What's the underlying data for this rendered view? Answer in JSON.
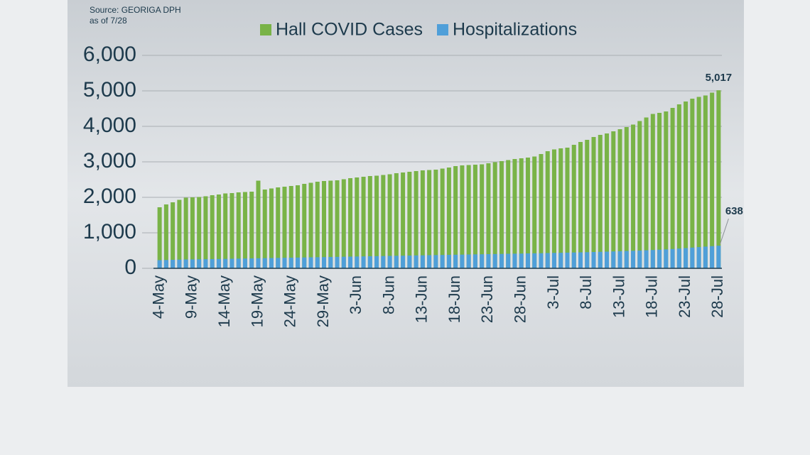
{
  "chart_data": {
    "type": "bar",
    "source": "Source: GEORIGA DPH",
    "as_of": "as of 7/28",
    "categories": [
      "4-May",
      null,
      null,
      null,
      null,
      "9-May",
      null,
      null,
      null,
      null,
      "14-May",
      null,
      null,
      null,
      null,
      "19-May",
      null,
      null,
      null,
      null,
      "24-May",
      null,
      null,
      null,
      null,
      "29-May",
      null,
      null,
      null,
      null,
      "3-Jun",
      null,
      null,
      null,
      null,
      "8-Jun",
      null,
      null,
      null,
      null,
      "13-Jun",
      null,
      null,
      null,
      null,
      "18-Jun",
      null,
      null,
      null,
      null,
      "23-Jun",
      null,
      null,
      null,
      null,
      "28-Jun",
      null,
      null,
      null,
      null,
      "3-Jul",
      null,
      null,
      null,
      null,
      "8-Jul",
      null,
      null,
      null,
      null,
      "13-Jul",
      null,
      null,
      null,
      null,
      "18-Jul",
      null,
      null,
      null,
      null,
      "23-Jul",
      null,
      null,
      null,
      null,
      "28-Jul"
    ],
    "series": [
      {
        "name": "Hall COVID Cases",
        "color": "#79b347",
        "values": [
          1720,
          1800,
          1860,
          1930,
          1990,
          2000,
          2010,
          2030,
          2060,
          2080,
          2110,
          2120,
          2140,
          2150,
          2160,
          2470,
          2220,
          2250,
          2280,
          2300,
          2320,
          2340,
          2380,
          2410,
          2440,
          2460,
          2470,
          2480,
          2510,
          2540,
          2560,
          2580,
          2600,
          2610,
          2630,
          2650,
          2680,
          2700,
          2720,
          2740,
          2760,
          2770,
          2780,
          2810,
          2840,
          2880,
          2900,
          2910,
          2920,
          2930,
          2960,
          2990,
          3020,
          3050,
          3080,
          3100,
          3120,
          3150,
          3220,
          3300,
          3350,
          3380,
          3400,
          3480,
          3560,
          3620,
          3700,
          3760,
          3800,
          3860,
          3920,
          3980,
          4050,
          4150,
          4250,
          4350,
          4380,
          4420,
          4520,
          4620,
          4700,
          4780,
          4830,
          4870,
          4950,
          5017
        ],
        "value_labels": [
          null,
          null,
          null,
          null,
          null,
          null,
          null,
          null,
          null,
          null,
          null,
          null,
          null,
          null,
          null,
          null,
          null,
          null,
          null,
          null,
          null,
          null,
          null,
          null,
          null,
          null,
          null,
          null,
          null,
          null,
          null,
          null,
          null,
          null,
          null,
          null,
          null,
          null,
          null,
          null,
          null,
          null,
          null,
          null,
          null,
          null,
          null,
          null,
          null,
          null,
          null,
          null,
          null,
          null,
          null,
          null,
          null,
          null,
          null,
          null,
          null,
          null,
          null,
          null,
          null,
          null,
          null,
          null,
          null,
          null,
          null,
          null,
          null,
          null,
          null,
          null,
          null,
          null,
          null,
          null,
          null,
          null,
          null,
          null,
          null,
          "5,017"
        ]
      },
      {
        "name": "Hospitalizations",
        "color": "#4f9fd9",
        "values": [
          230,
          235,
          240,
          245,
          250,
          252,
          255,
          258,
          260,
          263,
          266,
          270,
          273,
          276,
          280,
          283,
          286,
          290,
          293,
          296,
          300,
          303,
          306,
          310,
          313,
          316,
          320,
          323,
          326,
          330,
          333,
          336,
          340,
          343,
          346,
          350,
          353,
          356,
          360,
          363,
          366,
          370,
          373,
          376,
          380,
          383,
          386,
          390,
          393,
          396,
          400,
          403,
          406,
          410,
          413,
          416,
          420,
          423,
          426,
          430,
          434,
          438,
          442,
          446,
          450,
          455,
          460,
          465,
          470,
          476,
          482,
          488,
          494,
          500,
          508,
          516,
          525,
          534,
          544,
          556,
          570,
          584,
          598,
          612,
          625,
          638
        ],
        "value_labels": [
          null,
          null,
          null,
          null,
          null,
          null,
          null,
          null,
          null,
          null,
          null,
          null,
          null,
          null,
          null,
          null,
          null,
          null,
          null,
          null,
          null,
          null,
          null,
          null,
          null,
          null,
          null,
          null,
          null,
          null,
          null,
          null,
          null,
          null,
          null,
          null,
          null,
          null,
          null,
          null,
          null,
          null,
          null,
          null,
          null,
          null,
          null,
          null,
          null,
          null,
          null,
          null,
          null,
          null,
          null,
          null,
          null,
          null,
          null,
          null,
          null,
          null,
          null,
          null,
          null,
          null,
          null,
          null,
          null,
          null,
          null,
          null,
          null,
          null,
          null,
          null,
          null,
          null,
          null,
          null,
          null,
          null,
          null,
          null,
          null,
          "638"
        ]
      }
    ],
    "ylim": [
      0,
      6000
    ],
    "yticks": [
      0,
      {
        "value": 1000,
        "label": "1,000"
      },
      {
        "value": 2000,
        "label": "2,000"
      },
      {
        "value": 3000,
        "label": "3,000"
      },
      {
        "value": 4000,
        "label": "4,000"
      },
      {
        "value": 5000,
        "label": "5,000"
      },
      {
        "value": 6000,
        "label": "6,000"
      }
    ],
    "grid": true,
    "legend": "top"
  }
}
